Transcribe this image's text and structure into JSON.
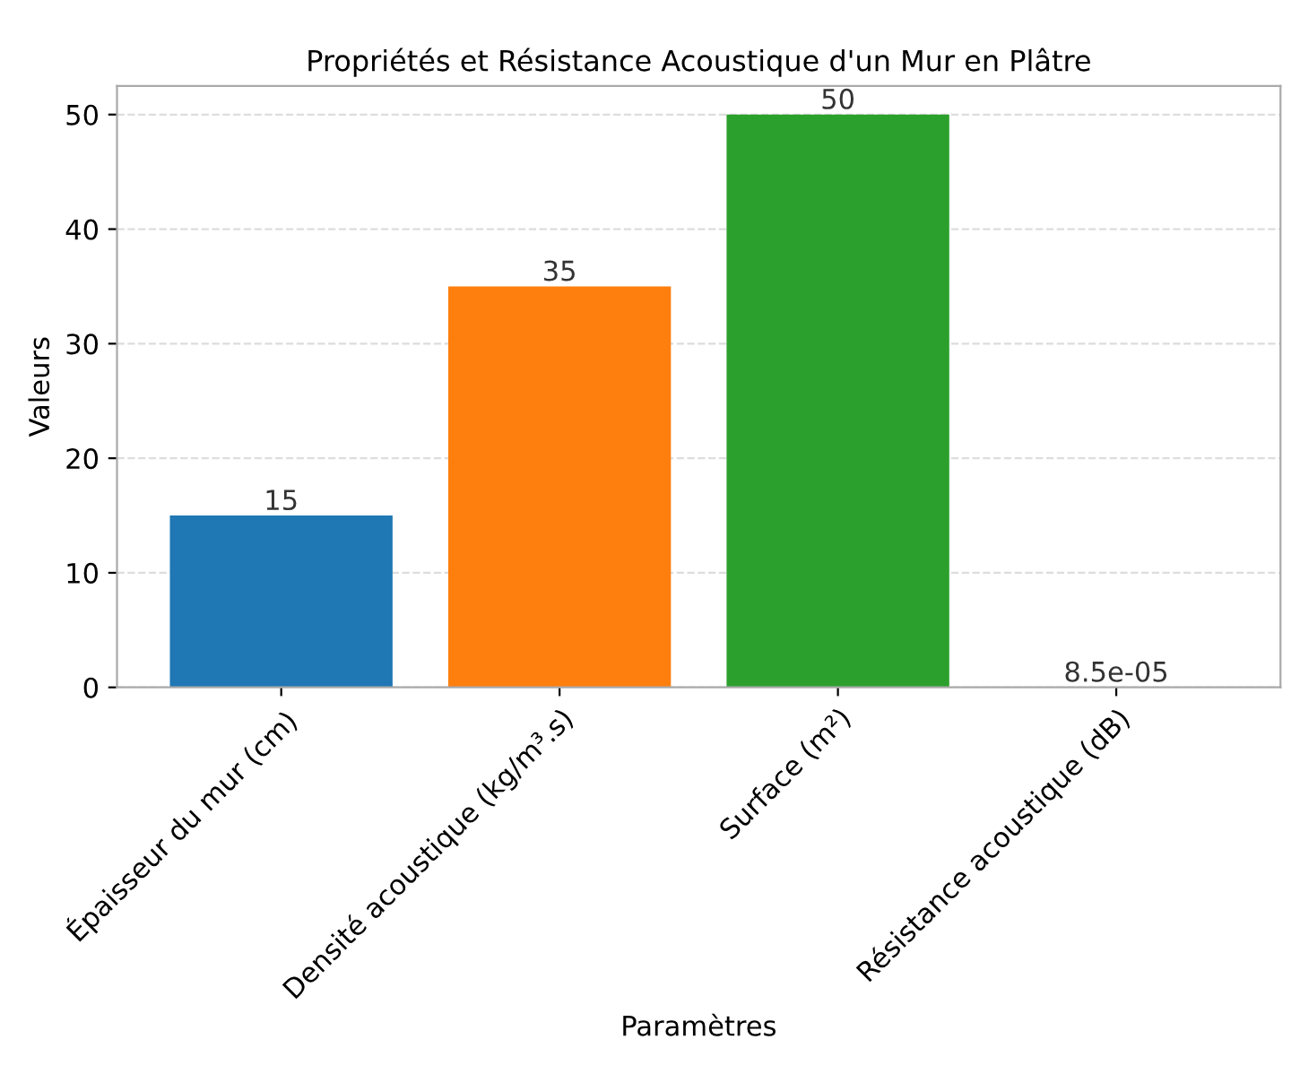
{
  "chart_data": {
    "type": "bar",
    "title": "Propriétés et Résistance Acoustique d'un Mur en Plâtre",
    "xlabel": "Paramètres",
    "ylabel": "Valeurs",
    "categories": [
      "Épaisseur du mur (cm)",
      "Densité acoustique (kg/m³.s)",
      "Surface (m²)",
      "Résistance acoustique (dB)"
    ],
    "values": [
      15,
      35,
      50,
      8.5e-05
    ],
    "colors": [
      "#1f77b4",
      "#ff7f0e",
      "#2ca02c",
      "#d62728"
    ],
    "value_labels": [
      "15",
      "35",
      "50",
      "8.5e-05"
    ],
    "ylim": [
      0,
      52.5
    ],
    "yticks": [
      0,
      10,
      20,
      30,
      40,
      50
    ],
    "grid": "y"
  }
}
